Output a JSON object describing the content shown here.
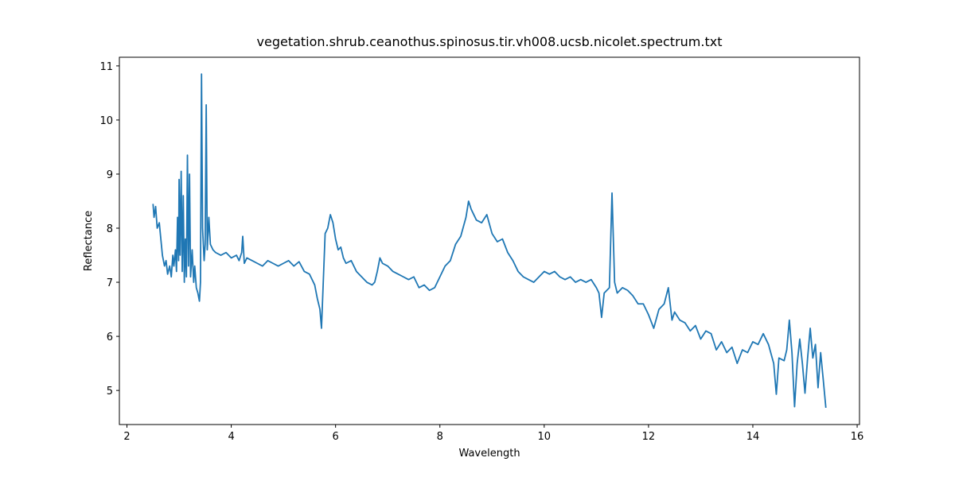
{
  "chart_data": {
    "type": "line",
    "title": "vegetation.shrub.ceanothus.spinosus.tir.vh008.ucsb.nicolet.spectrum.txt",
    "x_label": "Wavelength",
    "y_label": "Reflectance",
    "color": "#1f77b4",
    "xlim": [
      1.855,
      16.045
    ],
    "ylim": [
      4.37,
      11.16
    ],
    "xticks": [
      2,
      4,
      6,
      8,
      10,
      12,
      14,
      16
    ],
    "yticks": [
      5,
      6,
      7,
      8,
      9,
      10,
      11
    ],
    "x": [
      2.5,
      2.52,
      2.55,
      2.58,
      2.62,
      2.65,
      2.68,
      2.72,
      2.75,
      2.78,
      2.82,
      2.85,
      2.88,
      2.9,
      2.93,
      2.95,
      2.97,
      2.99,
      3.0,
      3.02,
      3.04,
      3.06,
      3.08,
      3.1,
      3.12,
      3.14,
      3.16,
      3.18,
      3.2,
      3.22,
      3.25,
      3.28,
      3.3,
      3.33,
      3.36,
      3.39,
      3.41,
      3.43,
      3.45,
      3.48,
      3.5,
      3.52,
      3.54,
      3.57,
      3.6,
      3.65,
      3.7,
      3.8,
      3.9,
      4.0,
      4.1,
      4.15,
      4.2,
      4.22,
      4.25,
      4.3,
      4.4,
      4.5,
      4.6,
      4.7,
      4.8,
      4.9,
      5.0,
      5.1,
      5.2,
      5.3,
      5.4,
      5.5,
      5.6,
      5.65,
      5.7,
      5.73,
      5.76,
      5.8,
      5.85,
      5.9,
      5.95,
      6.0,
      6.05,
      6.1,
      6.15,
      6.2,
      6.3,
      6.4,
      6.5,
      6.6,
      6.7,
      6.75,
      6.8,
      6.85,
      6.9,
      7.0,
      7.1,
      7.2,
      7.3,
      7.4,
      7.5,
      7.6,
      7.7,
      7.8,
      7.9,
      8.0,
      8.1,
      8.2,
      8.3,
      8.4,
      8.5,
      8.55,
      8.6,
      8.7,
      8.8,
      8.9,
      9.0,
      9.1,
      9.2,
      9.3,
      9.4,
      9.5,
      9.6,
      9.7,
      9.8,
      9.9,
      10.0,
      10.1,
      10.2,
      10.3,
      10.4,
      10.5,
      10.6,
      10.7,
      10.8,
      10.9,
      11.0,
      11.05,
      11.1,
      11.15,
      11.2,
      11.25,
      11.3,
      11.35,
      11.4,
      11.5,
      11.6,
      11.7,
      11.8,
      11.9,
      12.0,
      12.1,
      12.2,
      12.3,
      12.38,
      12.45,
      12.5,
      12.6,
      12.7,
      12.8,
      12.9,
      13.0,
      13.1,
      13.2,
      13.3,
      13.4,
      13.5,
      13.6,
      13.7,
      13.8,
      13.9,
      14.0,
      14.1,
      14.2,
      14.3,
      14.4,
      14.45,
      14.5,
      14.6,
      14.65,
      14.7,
      14.75,
      14.8,
      14.85,
      14.9,
      14.95,
      15.0,
      15.05,
      15.1,
      15.15,
      15.2,
      15.25,
      15.3,
      15.35,
      15.4
    ],
    "values": [
      8.45,
      8.2,
      8.4,
      8.0,
      8.1,
      7.8,
      7.5,
      7.3,
      7.4,
      7.15,
      7.3,
      7.1,
      7.5,
      7.3,
      7.6,
      7.2,
      8.2,
      7.4,
      8.9,
      7.5,
      9.05,
      7.2,
      8.6,
      7.0,
      7.8,
      7.1,
      9.35,
      7.3,
      9.0,
      7.1,
      7.6,
      7.0,
      7.3,
      6.9,
      6.8,
      6.65,
      7.0,
      10.85,
      8.0,
      7.4,
      7.7,
      10.28,
      7.6,
      8.2,
      7.7,
      7.6,
      7.55,
      7.5,
      7.55,
      7.45,
      7.5,
      7.4,
      7.55,
      7.85,
      7.35,
      7.45,
      7.4,
      7.35,
      7.3,
      7.4,
      7.35,
      7.3,
      7.35,
      7.4,
      7.3,
      7.38,
      7.2,
      7.15,
      6.95,
      6.7,
      6.5,
      6.15,
      6.9,
      7.9,
      8.0,
      8.25,
      8.1,
      7.8,
      7.6,
      7.65,
      7.45,
      7.35,
      7.4,
      7.2,
      7.1,
      7.0,
      6.95,
      7.0,
      7.2,
      7.45,
      7.35,
      7.3,
      7.2,
      7.15,
      7.1,
      7.05,
      7.1,
      6.9,
      6.95,
      6.85,
      6.9,
      7.1,
      7.3,
      7.4,
      7.7,
      7.85,
      8.2,
      8.5,
      8.35,
      8.15,
      8.1,
      8.25,
      7.9,
      7.75,
      7.8,
      7.55,
      7.4,
      7.2,
      7.1,
      7.05,
      7.0,
      7.1,
      7.2,
      7.15,
      7.2,
      7.1,
      7.05,
      7.1,
      7.0,
      7.05,
      7.0,
      7.05,
      6.9,
      6.8,
      6.35,
      6.8,
      6.85,
      6.9,
      8.65,
      7.0,
      6.8,
      6.9,
      6.85,
      6.75,
      6.6,
      6.6,
      6.4,
      6.15,
      6.5,
      6.6,
      6.9,
      6.3,
      6.45,
      6.3,
      6.25,
      6.1,
      6.2,
      5.95,
      6.1,
      6.05,
      5.75,
      5.9,
      5.7,
      5.8,
      5.5,
      5.75,
      5.7,
      5.9,
      5.85,
      6.05,
      5.85,
      5.5,
      4.93,
      5.6,
      5.55,
      5.75,
      6.3,
      5.7,
      4.7,
      5.5,
      5.95,
      5.5,
      4.95,
      5.6,
      6.15,
      5.6,
      5.85,
      5.05,
      5.7,
      5.2,
      4.68
    ]
  }
}
